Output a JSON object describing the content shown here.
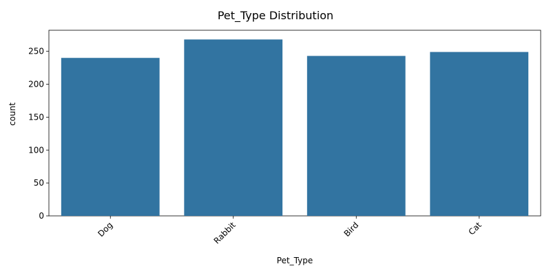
{
  "chart_data": {
    "type": "bar",
    "title": "Pet_Type Distribution",
    "xlabel": "Pet_Type",
    "ylabel": "count",
    "categories": [
      "Dog",
      "Rabbit",
      "Bird",
      "Cat"
    ],
    "values": [
      240,
      268,
      243,
      249
    ],
    "ylim": [
      0,
      282
    ],
    "yticks": [
      0,
      50,
      100,
      150,
      200,
      250
    ],
    "x_tick_rotation_deg": 45,
    "grid": false,
    "legend": "none",
    "bar_color": "#3274a1"
  }
}
